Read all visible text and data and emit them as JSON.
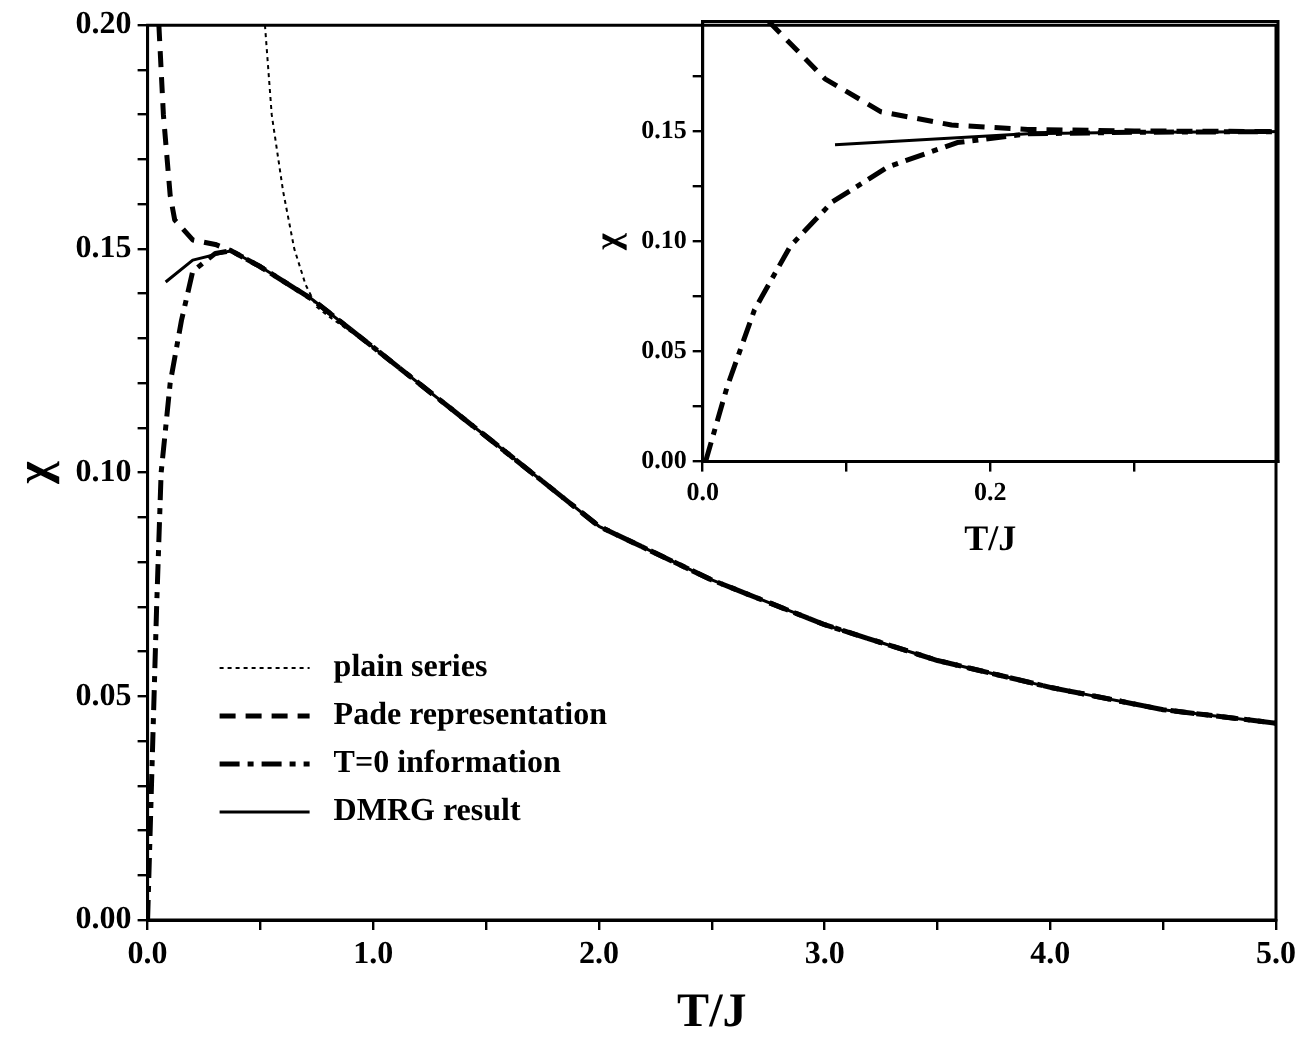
{
  "chart_data": [
    {
      "type": "line",
      "xlabel": "T/J",
      "ylabel": "χ",
      "xlim": [
        0,
        5
      ],
      "ylim": [
        0,
        0.2
      ],
      "xticks": [
        {
          "value": 0,
          "label": "0.0"
        },
        {
          "value": 0.5,
          "label": null
        },
        {
          "value": 1,
          "label": "1.0"
        },
        {
          "value": 1.5,
          "label": null
        },
        {
          "value": 2,
          "label": "2.0"
        },
        {
          "value": 2.5,
          "label": null
        },
        {
          "value": 3,
          "label": "3.0"
        },
        {
          "value": 3.5,
          "label": null
        },
        {
          "value": 4,
          "label": "4.0"
        },
        {
          "value": 4.5,
          "label": null
        },
        {
          "value": 5,
          "label": "5.0"
        }
      ],
      "yticks": [
        {
          "value": 0,
          "label": "0.00"
        },
        {
          "value": 0.01,
          "label": null
        },
        {
          "value": 0.02,
          "label": null
        },
        {
          "value": 0.03,
          "label": null
        },
        {
          "value": 0.04,
          "label": null
        },
        {
          "value": 0.05,
          "label": "0.05"
        },
        {
          "value": 0.06,
          "label": null
        },
        {
          "value": 0.07,
          "label": null
        },
        {
          "value": 0.08,
          "label": null
        },
        {
          "value": 0.09,
          "label": null
        },
        {
          "value": 0.1,
          "label": "0.10"
        },
        {
          "value": 0.11,
          "label": null
        },
        {
          "value": 0.12,
          "label": null
        },
        {
          "value": 0.13,
          "label": null
        },
        {
          "value": 0.14,
          "label": null
        },
        {
          "value": 0.15,
          "label": "0.15"
        },
        {
          "value": 0.16,
          "label": null
        },
        {
          "value": 0.17,
          "label": null
        },
        {
          "value": 0.18,
          "label": null
        },
        {
          "value": 0.19,
          "label": null
        },
        {
          "value": 0.2,
          "label": "0.20"
        }
      ],
      "legend": "bottom left",
      "series": [
        {
          "name": "plain series",
          "color": "#000000",
          "line_style": "dotted",
          "x": [
            0.52,
            0.55,
            0.6,
            0.65,
            0.7,
            0.75,
            0.8,
            1.0,
            1.54,
            2.0,
            2.5,
            3.0,
            3.5,
            4.0,
            4.5,
            5.0
          ],
          "values": [
            0.2,
            0.18,
            0.163,
            0.15,
            0.142,
            0.137,
            0.135,
            0.128,
            0.1065,
            0.088,
            0.076,
            0.066,
            0.058,
            0.052,
            0.047,
            0.044
          ]
        },
        {
          "name": "Pade representation",
          "color": "#000000",
          "line_style": "dashed",
          "x": [
            0.05,
            0.07,
            0.1,
            0.12,
            0.2,
            0.3,
            0.37,
            0.5,
            0.73,
            1.0,
            1.54,
            2.0,
            2.5,
            3.0,
            3.5,
            4.0,
            4.5,
            5.0
          ],
          "values": [
            0.2,
            0.18,
            0.162,
            0.1565,
            0.152,
            0.151,
            0.1496,
            0.146,
            0.1387,
            0.128,
            0.1065,
            0.088,
            0.076,
            0.066,
            0.058,
            0.052,
            0.047,
            0.044
          ]
        },
        {
          "name": "T=0 information",
          "color": "#000000",
          "line_style": "dashdot",
          "x": [
            0,
            0.02,
            0.04,
            0.06,
            0.1,
            0.15,
            0.2,
            0.3,
            0.37,
            0.5,
            0.73,
            1.0,
            1.54,
            2.0,
            2.5,
            3.0,
            3.5,
            4.0,
            4.5,
            5.0
          ],
          "values": [
            0,
            0.035,
            0.07,
            0.1,
            0.12,
            0.134,
            0.145,
            0.149,
            0.1496,
            0.146,
            0.1387,
            0.128,
            0.1065,
            0.088,
            0.076,
            0.066,
            0.058,
            0.052,
            0.047,
            0.044
          ]
        },
        {
          "name": "DMRG result",
          "color": "#000000",
          "line_style": "solid",
          "x": [
            0.08,
            0.2,
            0.37,
            0.5,
            0.73,
            1.0,
            1.54,
            2.0,
            2.5,
            3.0,
            3.5,
            4.0,
            4.5,
            5.0
          ],
          "values": [
            0.1426,
            0.1475,
            0.1496,
            0.146,
            0.1387,
            0.128,
            0.1065,
            0.088,
            0.076,
            0.066,
            0.058,
            0.052,
            0.047,
            0.044
          ]
        }
      ]
    },
    {
      "type": "line",
      "xlabel": "T/J",
      "ylabel": "χ",
      "xlim": [
        0,
        0.4
      ],
      "ylim": [
        0,
        0.2
      ],
      "xticks": [
        {
          "value": 0,
          "label": "0.0"
        },
        {
          "value": 0.1,
          "label": null
        },
        {
          "value": 0.2,
          "label": "0.2"
        },
        {
          "value": 0.3,
          "label": null
        }
      ],
      "yticks": [
        {
          "value": 0,
          "label": "0.00"
        },
        {
          "value": 0.025,
          "label": null
        },
        {
          "value": 0.05,
          "label": "0.05"
        },
        {
          "value": 0.075,
          "label": null
        },
        {
          "value": 0.1,
          "label": "0.10"
        },
        {
          "value": 0.125,
          "label": null
        },
        {
          "value": 0.15,
          "label": "0.15"
        },
        {
          "value": 0.175,
          "label": null
        }
      ],
      "series": [
        {
          "color": "#000000",
          "line_style": "dashed",
          "x": [
            0.046,
            0.085,
            0.124,
            0.173,
            0.226,
            0.3,
            0.4
          ],
          "values": [
            0.2,
            0.174,
            0.159,
            0.153,
            0.151,
            0.1503,
            0.15
          ]
        },
        {
          "color": "#000000",
          "line_style": "dashdot",
          "x": [
            0.002,
            0.017,
            0.036,
            0.061,
            0.09,
            0.129,
            0.177,
            0.226,
            0.3,
            0.4
          ],
          "values": [
            0,
            0.034,
            0.069,
            0.098,
            0.118,
            0.134,
            0.145,
            0.149,
            0.1497,
            0.15
          ]
        },
        {
          "color": "#000000",
          "line_style": "solid",
          "x": [
            0.092,
            0.226,
            0.3,
            0.4
          ],
          "values": [
            0.144,
            0.149,
            0.1497,
            0.15
          ]
        }
      ]
    }
  ]
}
